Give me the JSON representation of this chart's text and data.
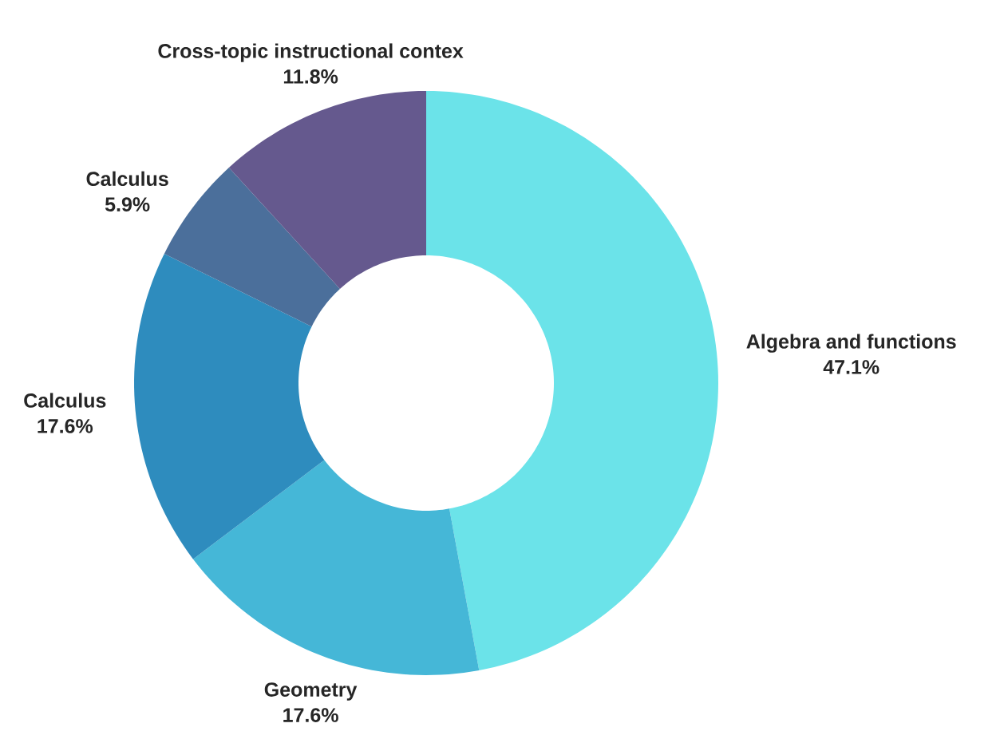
{
  "chart_data": {
    "type": "donut",
    "categories": [
      "Algebra and functions",
      "Geometry",
      "Calculus",
      "Calculus",
      "Cross-topic instructional contex"
    ],
    "values": [
      47.1,
      17.6,
      17.6,
      5.9,
      11.8
    ],
    "value_labels": [
      "47.1%",
      "17.6%",
      "17.6%",
      "5.9%",
      "11.8%"
    ],
    "colors": [
      "#6be3e9",
      "#45b7d7",
      "#2e8cbe",
      "#4b6f9b",
      "#65598e"
    ]
  }
}
